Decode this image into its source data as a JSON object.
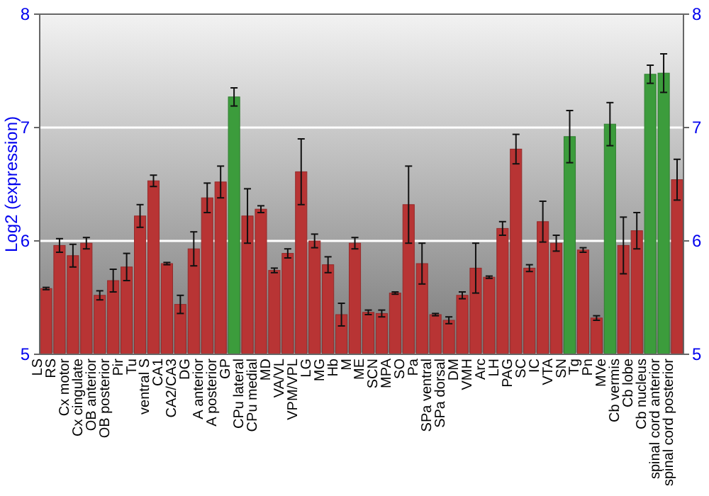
{
  "chart_data": {
    "type": "bar",
    "ylabel": "Log2 (expression)",
    "categories": [
      "LS",
      "RS",
      "Cx motor",
      "Cx cingulate",
      "OB anterior",
      "OB posterior",
      "Pir",
      "Tu",
      "ventral S",
      "CA1",
      "CA2/CA3",
      "DG",
      "A anterior",
      "A posterior",
      "GP",
      "CPu lateral",
      "CPu medial",
      "MD",
      "VA/VL",
      "VPM/VPL",
      "LG",
      "MG",
      "Hb",
      "M",
      "ME",
      "SCN",
      "MPA",
      "SO",
      "Pa",
      "SPa ventral",
      "SPa dorsal",
      "DM",
      "VMH",
      "Arc",
      "LH",
      "PAG",
      "SC",
      "IC",
      "VTA",
      "SN",
      "Tg",
      "Pn",
      "MVe",
      "Cb vermis",
      "Cb lobe",
      "Cb nucleus",
      "spinal cord anterior",
      "spinal cord posterior"
    ],
    "values": [
      5.58,
      5.96,
      5.87,
      5.98,
      5.52,
      5.65,
      5.77,
      6.22,
      6.53,
      5.8,
      5.44,
      5.93,
      6.38,
      6.52,
      7.27,
      6.22,
      6.28,
      5.74,
      5.89,
      6.61,
      6.0,
      5.79,
      5.35,
      5.98,
      5.37,
      5.36,
      5.54,
      6.32,
      5.8,
      5.35,
      5.3,
      5.52,
      5.76,
      5.68,
      6.11,
      6.81,
      5.76,
      6.17,
      5.98,
      6.92,
      5.92,
      5.32,
      7.03,
      5.96,
      6.09,
      7.47,
      7.48,
      6.54
    ],
    "errors": [
      0.01,
      0.06,
      0.1,
      0.05,
      0.04,
      0.1,
      0.12,
      0.1,
      0.05,
      0.01,
      0.08,
      0.15,
      0.13,
      0.14,
      0.08,
      0.24,
      0.03,
      0.02,
      0.04,
      0.29,
      0.06,
      0.07,
      0.1,
      0.05,
      0.02,
      0.03,
      0.01,
      0.34,
      0.18,
      0.01,
      0.03,
      0.03,
      0.22,
      0.01,
      0.06,
      0.13,
      0.03,
      0.18,
      0.07,
      0.23,
      0.02,
      0.02,
      0.19,
      0.25,
      0.16,
      0.08,
      0.17,
      0.18
    ],
    "colors": [
      "#b83434",
      "#b83434",
      "#b83434",
      "#b83434",
      "#b83434",
      "#b83434",
      "#b83434",
      "#b83434",
      "#b83434",
      "#b83434",
      "#b83434",
      "#b83434",
      "#b83434",
      "#b83434",
      "#3c9c3c",
      "#b83434",
      "#b83434",
      "#b83434",
      "#b83434",
      "#b83434",
      "#b83434",
      "#b83434",
      "#b83434",
      "#b83434",
      "#b83434",
      "#b83434",
      "#b83434",
      "#b83434",
      "#b83434",
      "#b83434",
      "#b83434",
      "#b83434",
      "#b83434",
      "#b83434",
      "#b83434",
      "#b83434",
      "#b83434",
      "#b83434",
      "#b83434",
      "#3c9c3c",
      "#b83434",
      "#b83434",
      "#3c9c3c",
      "#b83434",
      "#b83434",
      "#3c9c3c",
      "#3c9c3c",
      "#b83434"
    ],
    "ylim": [
      5,
      8
    ],
    "yticks": [
      5,
      6,
      7,
      8
    ],
    "y2lim": [
      5,
      8
    ],
    "y2ticks": [
      5,
      6,
      7,
      8
    ],
    "grid": "y"
  }
}
